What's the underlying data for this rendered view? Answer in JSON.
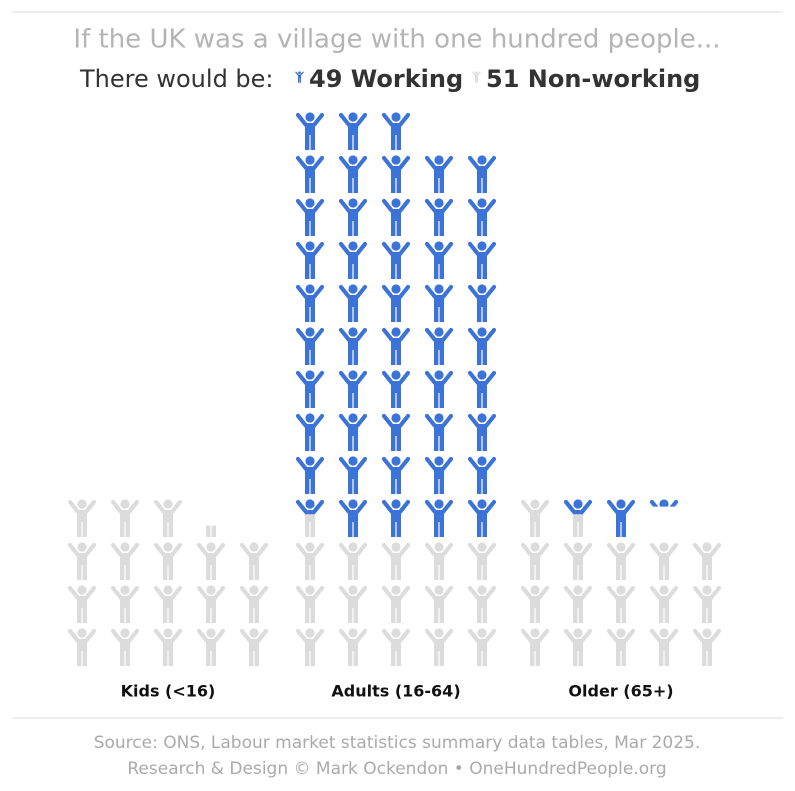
{
  "chart_data": {
    "type": "pictogram",
    "title": "If the UK was a village with one hundred people...",
    "subtitle": "There would be:",
    "categories": [
      "Kids (<16)",
      "Adults (16-64)",
      "Older (65+)"
    ],
    "series": [
      {
        "name": "Non-working",
        "color": "#dcdcdc",
        "values": [
          18.3,
          15.6,
          16.6
        ],
        "total": 51
      },
      {
        "name": "Working",
        "color": "#3b73d9",
        "values": [
          0,
          47.4,
          1.6
        ],
        "total": 49
      }
    ],
    "notes": [
      "Source: ONS, Labour market statistics summary data tables, Mar 2025.",
      "Research & Design © Mark Ockendon • OneHundredPeople.org"
    ]
  }
}
